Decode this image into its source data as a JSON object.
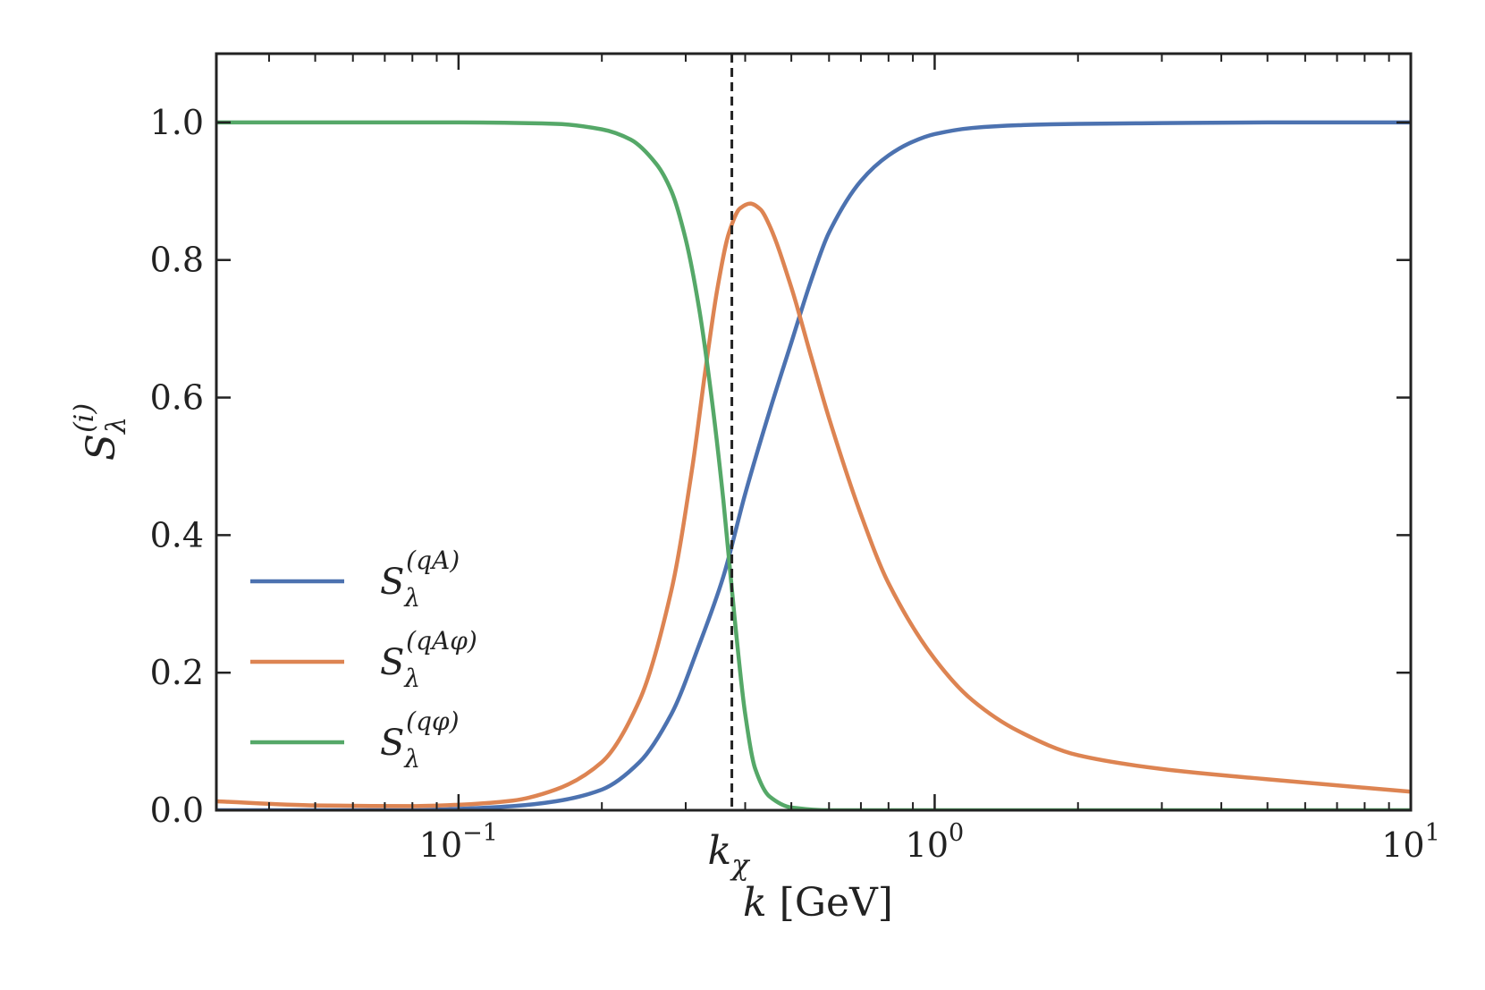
{
  "chart_data": {
    "type": "line",
    "xscale": "log",
    "xlim": [
      0.031,
      10
    ],
    "ylim": [
      0,
      1.1
    ],
    "xticks": [
      {
        "value": 0.1,
        "base": "10",
        "exp": "−1"
      },
      {
        "value": 1,
        "base": "10",
        "exp": "0"
      },
      {
        "value": 10,
        "base": "10",
        "exp": "1"
      }
    ],
    "yticks": [
      "0.0",
      "0.2",
      "0.4",
      "0.6",
      "0.8",
      "1.0"
    ],
    "xlabel": {
      "var": "k",
      "unit": "[GeV]"
    },
    "ylabel": {
      "var": "S",
      "sub": "λ",
      "sup": "(i)"
    },
    "vline": {
      "x": 0.375,
      "label_var": "k",
      "label_sub": "χ",
      "style": "dashed"
    },
    "legend_position": "lower-left",
    "series": [
      {
        "name_var": "S",
        "name_sub": "λ",
        "name_sup": "(qA)",
        "color": "#4c72b0",
        "x": [
          0.031,
          0.05,
          0.08,
          0.1,
          0.13,
          0.16,
          0.2,
          0.24,
          0.28,
          0.32,
          0.36,
          0.4,
          0.45,
          0.5,
          0.55,
          0.6,
          0.7,
          0.8,
          0.9,
          1.0,
          1.2,
          1.5,
          2,
          3,
          5,
          10
        ],
        "y": [
          0.0,
          0.0,
          0.0,
          0.002,
          0.006,
          0.013,
          0.03,
          0.07,
          0.14,
          0.24,
          0.34,
          0.46,
          0.58,
          0.68,
          0.77,
          0.84,
          0.915,
          0.952,
          0.972,
          0.983,
          0.992,
          0.996,
          0.998,
          0.999,
          1.0,
          1.0
        ]
      },
      {
        "name_var": "S",
        "name_sub": "λ",
        "name_sup": "(qAφ)",
        "color": "#dd8452",
        "x": [
          0.031,
          0.05,
          0.08,
          0.1,
          0.13,
          0.16,
          0.2,
          0.24,
          0.28,
          0.31,
          0.33,
          0.35,
          0.37,
          0.39,
          0.41,
          0.43,
          0.45,
          0.5,
          0.55,
          0.6,
          0.7,
          0.8,
          1.0,
          1.2,
          1.5,
          2,
          3,
          5,
          10
        ],
        "y": [
          0.013,
          0.007,
          0.006,
          0.008,
          0.014,
          0.03,
          0.07,
          0.16,
          0.32,
          0.5,
          0.64,
          0.76,
          0.84,
          0.875,
          0.882,
          0.874,
          0.85,
          0.76,
          0.66,
          0.57,
          0.43,
          0.33,
          0.22,
          0.16,
          0.115,
          0.08,
          0.06,
          0.045,
          0.027
        ]
      },
      {
        "name_var": "S",
        "name_sub": "λ",
        "name_sup": "(qφ)",
        "color": "#55a868",
        "x": [
          0.031,
          0.1,
          0.16,
          0.2,
          0.23,
          0.26,
          0.28,
          0.3,
          0.32,
          0.34,
          0.36,
          0.38,
          0.4,
          0.42,
          0.45,
          0.5,
          0.6,
          1,
          10
        ],
        "y": [
          1.0,
          1.0,
          0.998,
          0.99,
          0.975,
          0.94,
          0.9,
          0.83,
          0.73,
          0.6,
          0.45,
          0.28,
          0.14,
          0.06,
          0.02,
          0.004,
          0.0,
          0.0,
          0.0
        ]
      }
    ]
  }
}
